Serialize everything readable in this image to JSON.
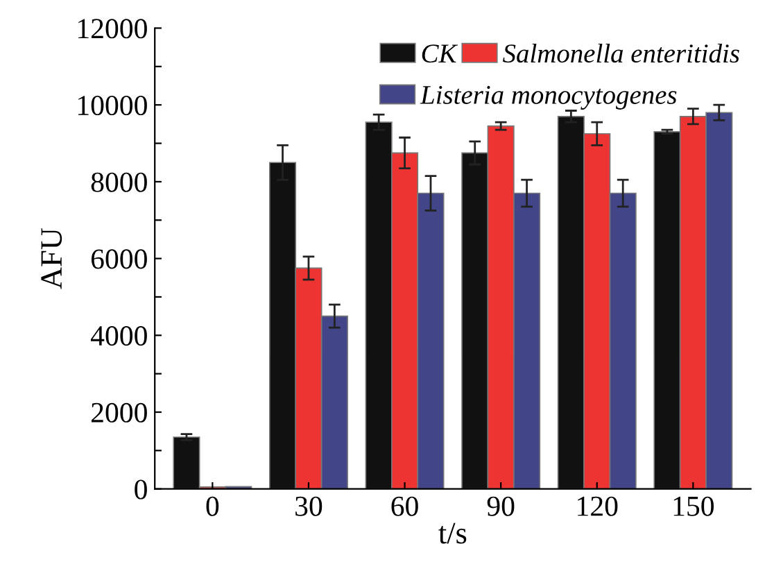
{
  "chart_data": {
    "type": "bar",
    "xlabel": "t/s",
    "ylabel": "AFU",
    "categories": [
      "0",
      "30",
      "60",
      "90",
      "120",
      "150"
    ],
    "series": [
      {
        "name": "CK",
        "color": "#111111",
        "values": [
          1350,
          8500,
          9550,
          8750,
          9700,
          9300
        ],
        "errors": [
          80,
          450,
          200,
          300,
          150,
          50
        ]
      },
      {
        "name": "Salmonella enteritidis",
        "color": "#ee3333",
        "values": [
          50,
          5750,
          8750,
          9450,
          9250,
          9700
        ],
        "errors": [
          null,
          300,
          400,
          100,
          300,
          200
        ]
      },
      {
        "name": "Listeria monocytogenes",
        "color": "#424588",
        "values": [
          60,
          4500,
          7700,
          7700,
          7700,
          9800
        ],
        "errors": [
          null,
          300,
          450,
          350,
          350,
          200
        ]
      }
    ],
    "ylim": [
      0,
      12000
    ],
    "yticks": [
      0,
      {
        "value": 1000,
        "label": null
      },
      2000,
      {
        "value": 3000,
        "label": null
      },
      4000,
      {
        "value": 5000,
        "label": null
      },
      6000,
      {
        "value": 7000,
        "label": null
      },
      8000,
      {
        "value": 9000,
        "label": null
      },
      10000,
      {
        "value": 11000,
        "label": null
      },
      12000
    ],
    "grid": false,
    "legend": "top right"
  }
}
